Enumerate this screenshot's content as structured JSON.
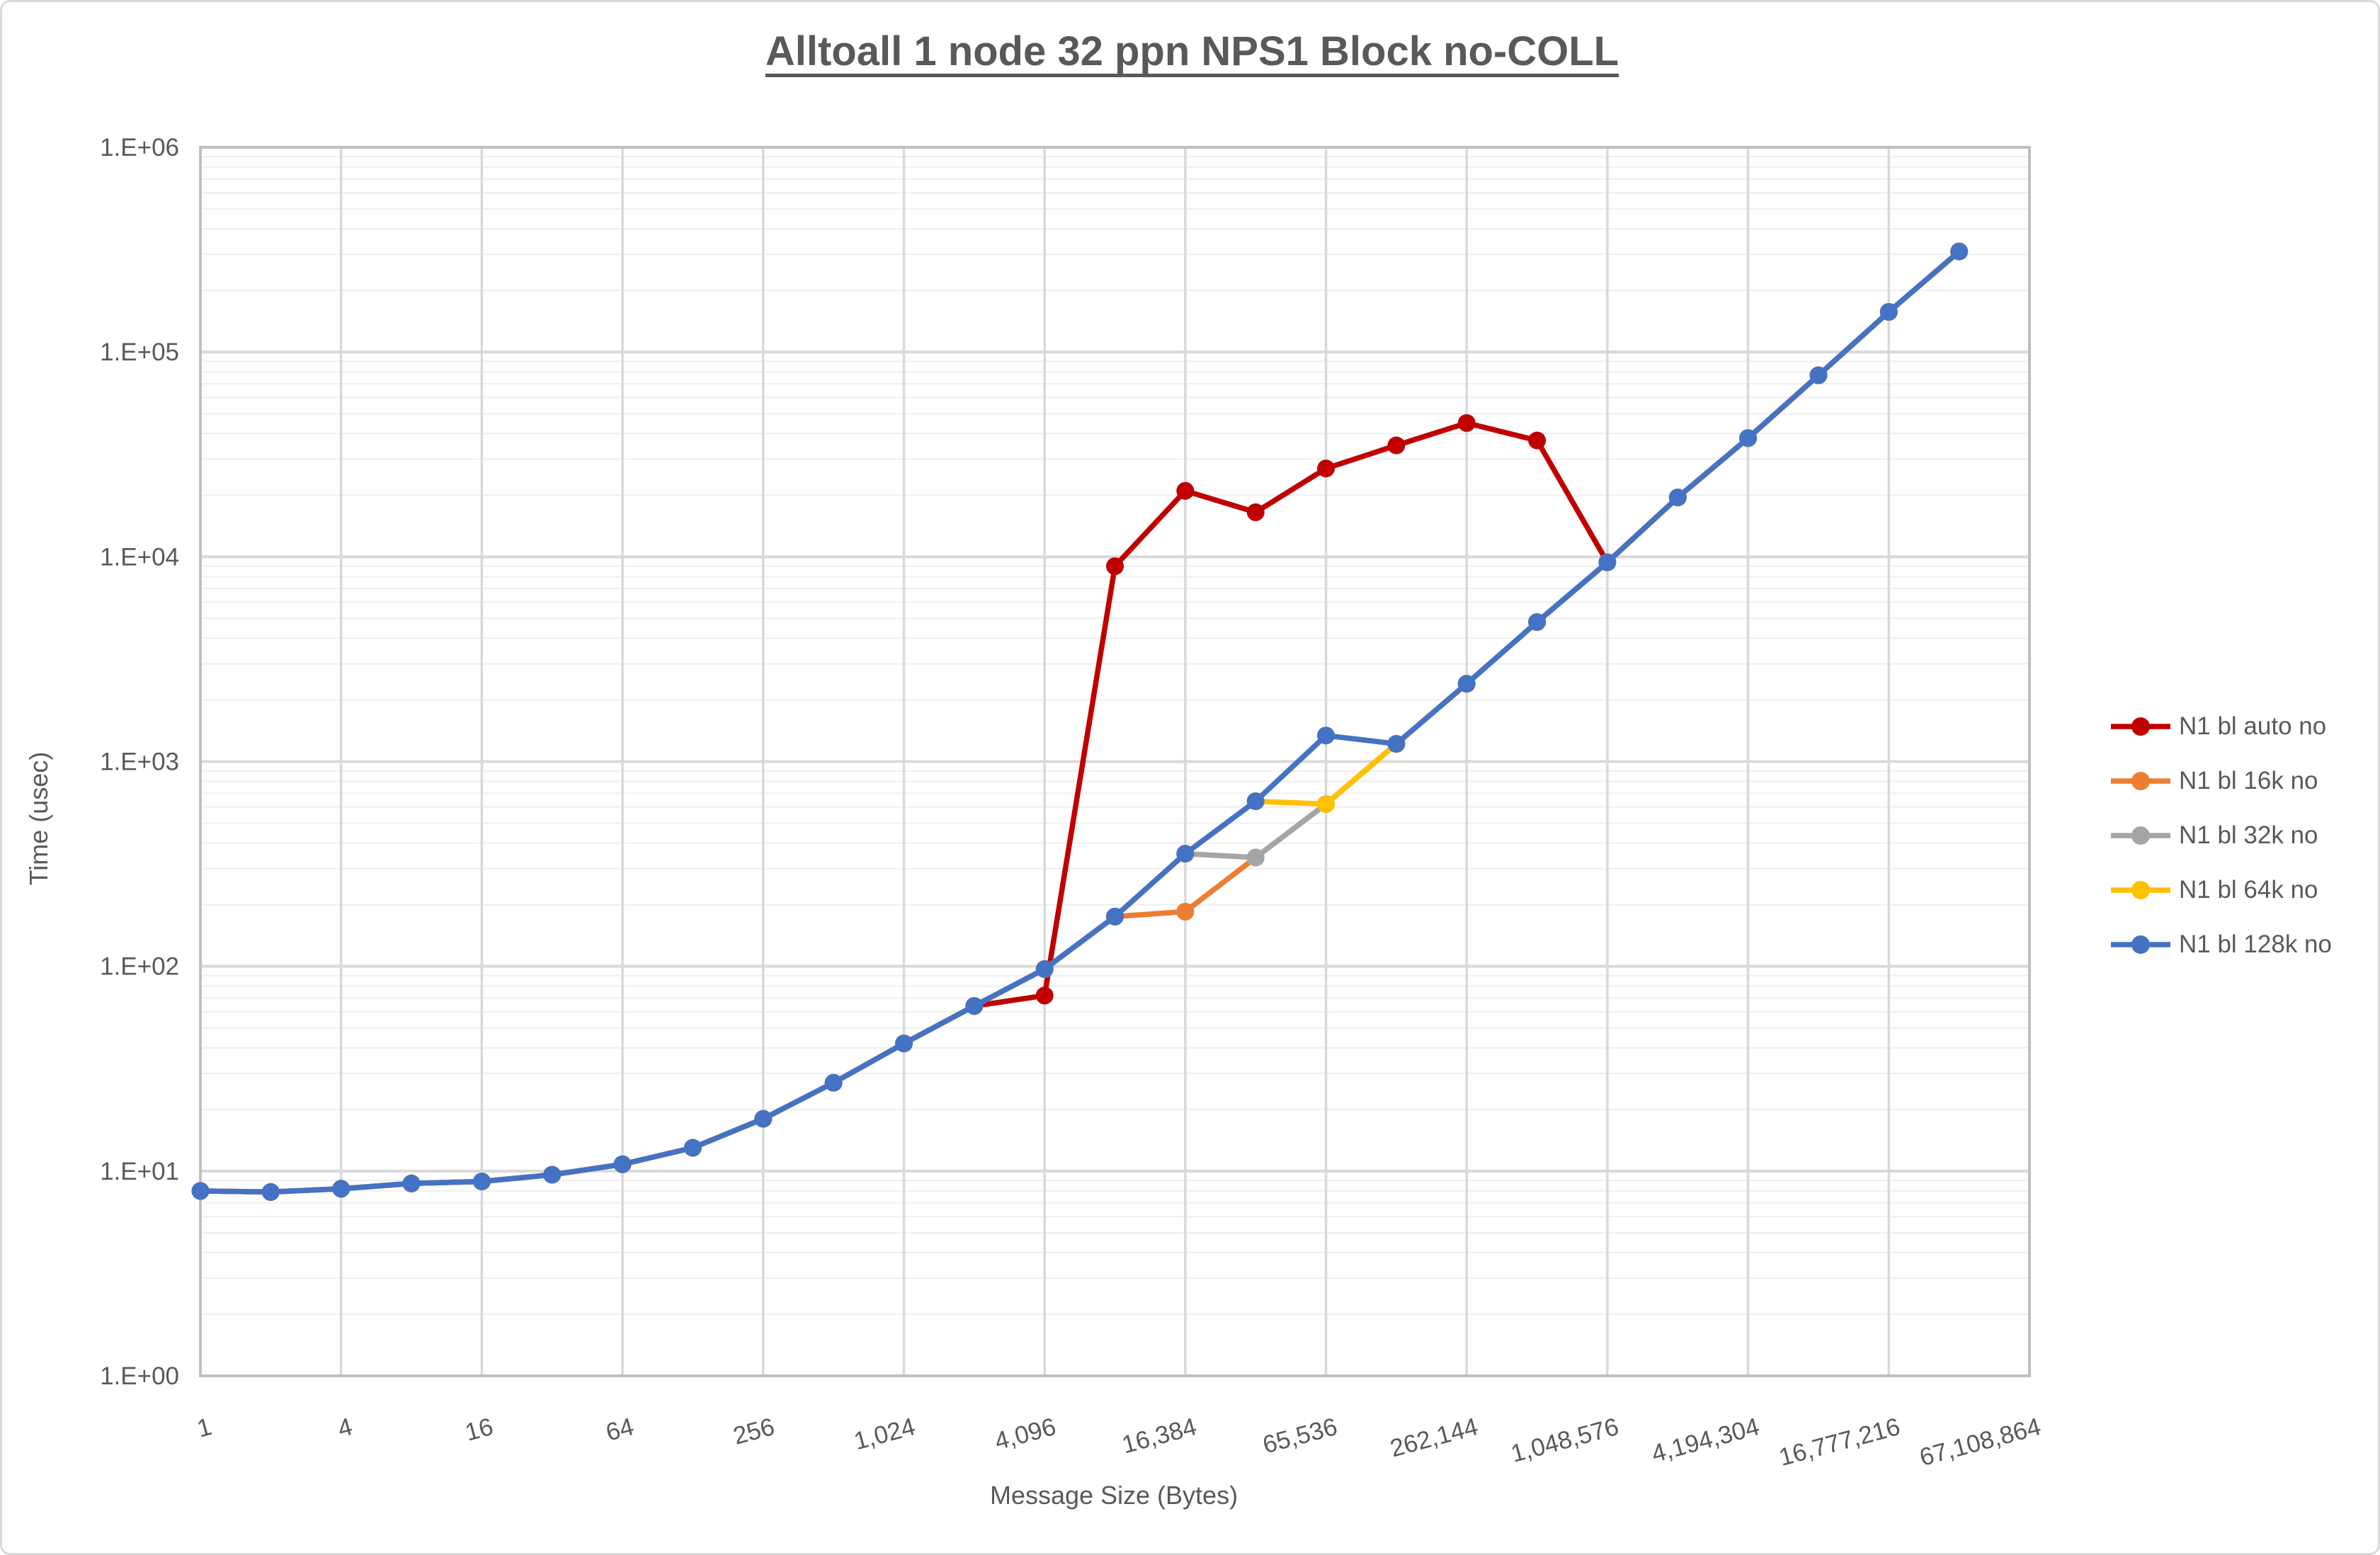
{
  "title": "Alltoall 1 node 32 ppn NPS1 Block no-COLL",
  "axes": {
    "x_title": "Message Size (Bytes)",
    "y_title": "Time (usec)"
  },
  "chart_data": {
    "type": "line",
    "title": "Alltoall 1 node 32 ppn NPS1 Block no-COLL",
    "xlabel": "Message Size (Bytes)",
    "ylabel": "Time (usec)",
    "x_scale": "log2",
    "y_scale": "log10",
    "xlim": [
      1,
      67108864
    ],
    "ylim": [
      1,
      1000000
    ],
    "grid": true,
    "legend_position": "right",
    "y_ticks": [
      {
        "value": 1,
        "label": "1.E+00"
      },
      {
        "value": 10,
        "label": "1.E+01"
      },
      {
        "value": 100,
        "label": "1.E+02"
      },
      {
        "value": 1000,
        "label": "1.E+03"
      },
      {
        "value": 10000,
        "label": "1.E+04"
      },
      {
        "value": 100000,
        "label": "1.E+05"
      },
      {
        "value": 1000000,
        "label": "1.E+06"
      }
    ],
    "x_ticks": [
      {
        "value": 1,
        "label": "1"
      },
      {
        "value": 4,
        "label": "4"
      },
      {
        "value": 16,
        "label": "16"
      },
      {
        "value": 64,
        "label": "64"
      },
      {
        "value": 256,
        "label": "256"
      },
      {
        "value": 1024,
        "label": "1,024"
      },
      {
        "value": 4096,
        "label": "4,096"
      },
      {
        "value": 16384,
        "label": "16,384"
      },
      {
        "value": 65536,
        "label": "65,536"
      },
      {
        "value": 262144,
        "label": "262,144"
      },
      {
        "value": 1048576,
        "label": "1,048,576"
      },
      {
        "value": 4194304,
        "label": "4,194,304"
      },
      {
        "value": 16777216,
        "label": "16,777,216"
      },
      {
        "value": 67108864,
        "label": "67,108,864"
      }
    ],
    "x": [
      1,
      2,
      4,
      8,
      16,
      32,
      64,
      128,
      256,
      512,
      1024,
      2048,
      4096,
      8192,
      16384,
      32768,
      65536,
      131072,
      262144,
      524288,
      1048576,
      2097152,
      4194304,
      8388608,
      16777216,
      33554432
    ],
    "series": [
      {
        "name": "N1 bl auto no",
        "color": "#C00000",
        "values": [
          8,
          7.9,
          8.2,
          8.7,
          8.9,
          9.6,
          10.8,
          13,
          18,
          27,
          42,
          64,
          72,
          9000,
          21000,
          16500,
          27000,
          35000,
          45000,
          37000,
          9400,
          19500,
          38000,
          77000,
          157000,
          310000
        ]
      },
      {
        "name": "N1 bl 16k no",
        "color": "#ED7D31",
        "values": [
          8,
          7.9,
          8.2,
          8.7,
          8.9,
          9.6,
          10.8,
          13,
          18,
          27,
          42,
          64,
          97,
          175,
          185,
          340,
          620,
          1220,
          2400,
          4800,
          9400,
          19500,
          38000,
          77000,
          157000,
          310000
        ]
      },
      {
        "name": "N1 bl 32k no",
        "color": "#A5A5A5",
        "values": [
          8,
          7.9,
          8.2,
          8.7,
          8.9,
          9.6,
          10.8,
          13,
          18,
          27,
          42,
          64,
          97,
          175,
          355,
          340,
          620,
          1220,
          2400,
          4800,
          9400,
          19500,
          38000,
          77000,
          157000,
          310000
        ]
      },
      {
        "name": "N1 bl 64k no",
        "color": "#FFC000",
        "values": [
          8,
          7.9,
          8.2,
          8.7,
          8.9,
          9.6,
          10.8,
          13,
          18,
          27,
          42,
          64,
          97,
          175,
          355,
          640,
          620,
          1220,
          2400,
          4800,
          9400,
          19500,
          38000,
          77000,
          157000,
          310000
        ]
      },
      {
        "name": "N1 bl 128k no",
        "color": "#4472C4",
        "values": [
          8,
          7.9,
          8.2,
          8.7,
          8.9,
          9.6,
          10.8,
          13,
          18,
          27,
          42,
          64,
          97,
          175,
          355,
          640,
          1340,
          1220,
          2400,
          4800,
          9400,
          19500,
          38000,
          77000,
          157000,
          310000
        ]
      }
    ],
    "colors": {
      "text": "#595959",
      "grid_major": "#D9D9D9",
      "grid_minor": "#F0F0F0",
      "plot_border": "#BFBFBF"
    }
  }
}
